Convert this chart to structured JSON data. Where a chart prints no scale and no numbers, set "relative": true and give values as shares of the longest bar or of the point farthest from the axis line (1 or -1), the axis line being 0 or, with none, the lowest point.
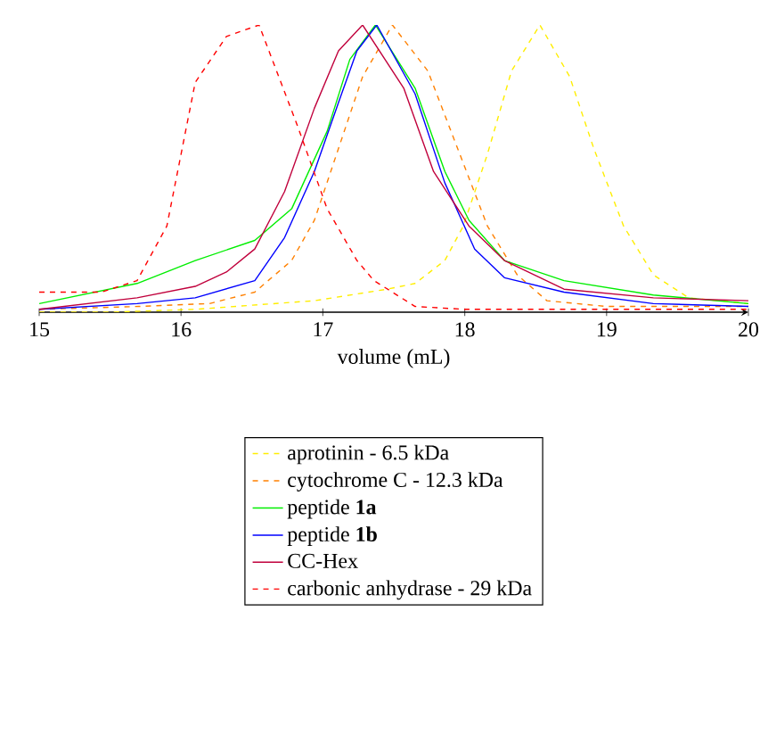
{
  "chart_data": {
    "type": "line",
    "relative": true,
    "xlabel": "volume (mL)",
    "xlim": [
      15,
      20
    ],
    "xticks": [
      15,
      16,
      17,
      18,
      19,
      20
    ],
    "legend": "bottom",
    "marker": "none",
    "tick_labels": "x",
    "series": [
      {
        "name": "aprotinin - 6.5 kDa",
        "color": "#ffee00",
        "line_style": "dashed",
        "x": [
          15,
          15.5,
          16.1,
          16.94,
          17.45,
          17.65,
          17.86,
          17.99,
          18.16,
          18.33,
          18.53,
          18.74,
          18.91,
          19.12,
          19.33,
          19.58,
          20
        ],
        "values": [
          0.0,
          0.0,
          0.01,
          0.04,
          0.08,
          0.1,
          0.18,
          0.3,
          0.55,
          0.84,
          1.0,
          0.82,
          0.57,
          0.3,
          0.13,
          0.05,
          0.03
        ]
      },
      {
        "name": "cytochrome C - 12.3 kDa",
        "color": "#ff8000",
        "line_style": "dashed",
        "x": [
          15,
          15.7,
          16.2,
          16.52,
          16.78,
          16.94,
          17.11,
          17.28,
          17.49,
          17.74,
          17.95,
          18.16,
          18.37,
          18.58,
          19,
          20
        ],
        "values": [
          0.01,
          0.02,
          0.03,
          0.07,
          0.18,
          0.32,
          0.57,
          0.82,
          1.0,
          0.84,
          0.57,
          0.3,
          0.13,
          0.04,
          0.02,
          0.02
        ]
      },
      {
        "name": "peptide **1a**",
        "color": "#00ee00",
        "line_style": "solid",
        "x": [
          15,
          15.69,
          16.1,
          16.52,
          16.78,
          17.03,
          17.19,
          17.37,
          17.65,
          17.86,
          18.03,
          18.28,
          18.7,
          19.33,
          20
        ],
        "values": [
          0.03,
          0.1,
          0.18,
          0.25,
          0.36,
          0.63,
          0.88,
          1.0,
          0.78,
          0.49,
          0.32,
          0.18,
          0.11,
          0.06,
          0.03
        ]
      },
      {
        "name": "peptide **1b**",
        "color": "#0000ff",
        "line_style": "solid",
        "x": [
          15,
          15.69,
          16.1,
          16.52,
          16.73,
          16.94,
          17.11,
          17.24,
          17.38,
          17.65,
          17.86,
          18.07,
          18.28,
          18.7,
          19.33,
          20
        ],
        "values": [
          0.01,
          0.03,
          0.05,
          0.11,
          0.26,
          0.49,
          0.73,
          0.91,
          1.0,
          0.76,
          0.45,
          0.22,
          0.12,
          0.07,
          0.03,
          0.02
        ]
      },
      {
        "name": "CC-Hex",
        "color": "#c0003c",
        "line_style": "solid",
        "x": [
          15,
          15.69,
          16.1,
          16.32,
          16.52,
          16.73,
          16.94,
          17.11,
          17.28,
          17.57,
          17.78,
          18.03,
          18.28,
          18.7,
          19.33,
          20
        ],
        "values": [
          0.01,
          0.05,
          0.09,
          0.14,
          0.22,
          0.42,
          0.71,
          0.91,
          1.0,
          0.78,
          0.49,
          0.3,
          0.18,
          0.08,
          0.05,
          0.04
        ]
      },
      {
        "name": "carbonic anhydrase - 29 kDa",
        "color": "#ff0000",
        "line_style": "dashed",
        "x": [
          15,
          15.44,
          15.69,
          15.9,
          16.1,
          16.32,
          16.55,
          16.82,
          17.03,
          17.24,
          17.36,
          17.65,
          18,
          20
        ],
        "values": [
          0.07,
          0.07,
          0.11,
          0.3,
          0.8,
          0.96,
          1.0,
          0.65,
          0.36,
          0.18,
          0.11,
          0.02,
          0.01,
          0.01
        ]
      }
    ]
  }
}
